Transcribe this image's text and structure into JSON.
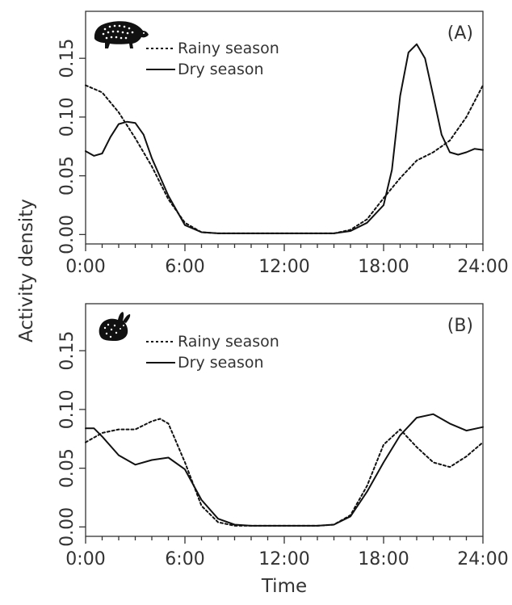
{
  "figure": {
    "ylabel": "Activity density",
    "xlabel": "Time"
  },
  "chart_data": [
    {
      "type": "line",
      "panel_label": "(A)",
      "icon": "paca-icon",
      "xlim": [
        0,
        24
      ],
      "ylim": [
        -0.008,
        0.19
      ],
      "x_ticks": [
        0,
        6,
        12,
        18,
        24
      ],
      "x_tick_labels": [
        "0:00",
        "6:00",
        "12:00",
        "18:00",
        "24:00"
      ],
      "y_ticks": [
        0,
        0.05,
        0.1,
        0.15
      ],
      "y_tick_labels": [
        "0.00",
        "0.05",
        "0.10",
        "0.15"
      ],
      "legend_position": "top-left",
      "series": [
        {
          "name": "Rainy season",
          "style": "dotted",
          "color": "#111111",
          "x": [
            0,
            1,
            2,
            3,
            4,
            5,
            6,
            7,
            8,
            9,
            10,
            11,
            12,
            13,
            14,
            15,
            16,
            17,
            18,
            19,
            20,
            21,
            22,
            23,
            24
          ],
          "y": [
            0.127,
            0.121,
            0.104,
            0.082,
            0.058,
            0.03,
            0.01,
            0.002,
            0.001,
            0.001,
            0.001,
            0.001,
            0.001,
            0.001,
            0.001,
            0.001,
            0.004,
            0.013,
            0.031,
            0.048,
            0.063,
            0.07,
            0.08,
            0.1,
            0.127
          ]
        },
        {
          "name": "Dry season",
          "style": "solid",
          "color": "#111111",
          "x": [
            0,
            0.5,
            1,
            1.5,
            2,
            2.5,
            3,
            3.5,
            4,
            5,
            6,
            7,
            8,
            9,
            10,
            11,
            12,
            13,
            14,
            15,
            16,
            17,
            18,
            18.5,
            19,
            19.5,
            20,
            20.5,
            21,
            21.5,
            22,
            22.5,
            23,
            23.5,
            24
          ],
          "y": [
            0.071,
            0.067,
            0.069,
            0.083,
            0.094,
            0.096,
            0.095,
            0.085,
            0.065,
            0.033,
            0.008,
            0.002,
            0.001,
            0.001,
            0.001,
            0.001,
            0.001,
            0.001,
            0.001,
            0.001,
            0.003,
            0.01,
            0.025,
            0.055,
            0.118,
            0.155,
            0.162,
            0.15,
            0.118,
            0.085,
            0.07,
            0.068,
            0.07,
            0.073,
            0.072
          ]
        }
      ]
    },
    {
      "type": "line",
      "panel_label": "(B)",
      "icon": "rabbit-icon",
      "xlim": [
        0,
        24
      ],
      "ylim": [
        -0.008,
        0.19
      ],
      "x_ticks": [
        0,
        6,
        12,
        18,
        24
      ],
      "x_tick_labels": [
        "0:00",
        "6:00",
        "12:00",
        "18:00",
        "24:00"
      ],
      "y_ticks": [
        0,
        0.05,
        0.1,
        0.15
      ],
      "y_tick_labels": [
        "0.00",
        "0.05",
        "0.10",
        "0.15"
      ],
      "legend_position": "top-left",
      "series": [
        {
          "name": "Rainy season",
          "style": "dotted",
          "color": "#111111",
          "x": [
            0,
            1,
            2,
            3,
            4,
            4.5,
            5,
            6,
            7,
            8,
            9,
            10,
            11,
            12,
            13,
            14,
            15,
            16,
            17,
            18,
            19,
            20,
            21,
            22,
            23,
            24
          ],
          "y": [
            0.072,
            0.08,
            0.083,
            0.083,
            0.09,
            0.092,
            0.088,
            0.055,
            0.018,
            0.004,
            0.001,
            0.001,
            0.001,
            0.001,
            0.001,
            0.001,
            0.002,
            0.01,
            0.035,
            0.07,
            0.083,
            0.068,
            0.055,
            0.051,
            0.06,
            0.072
          ]
        },
        {
          "name": "Dry season",
          "style": "solid",
          "color": "#111111",
          "x": [
            0,
            0.5,
            1,
            2,
            3,
            4,
            5,
            6,
            7,
            8,
            9,
            10,
            11,
            12,
            13,
            14,
            15,
            16,
            17,
            18,
            19,
            20,
            21,
            22,
            23,
            24
          ],
          "y": [
            0.084,
            0.084,
            0.077,
            0.061,
            0.053,
            0.057,
            0.059,
            0.049,
            0.023,
            0.007,
            0.002,
            0.001,
            0.001,
            0.001,
            0.001,
            0.001,
            0.002,
            0.009,
            0.03,
            0.055,
            0.078,
            0.093,
            0.096,
            0.088,
            0.082,
            0.085
          ]
        }
      ]
    }
  ]
}
